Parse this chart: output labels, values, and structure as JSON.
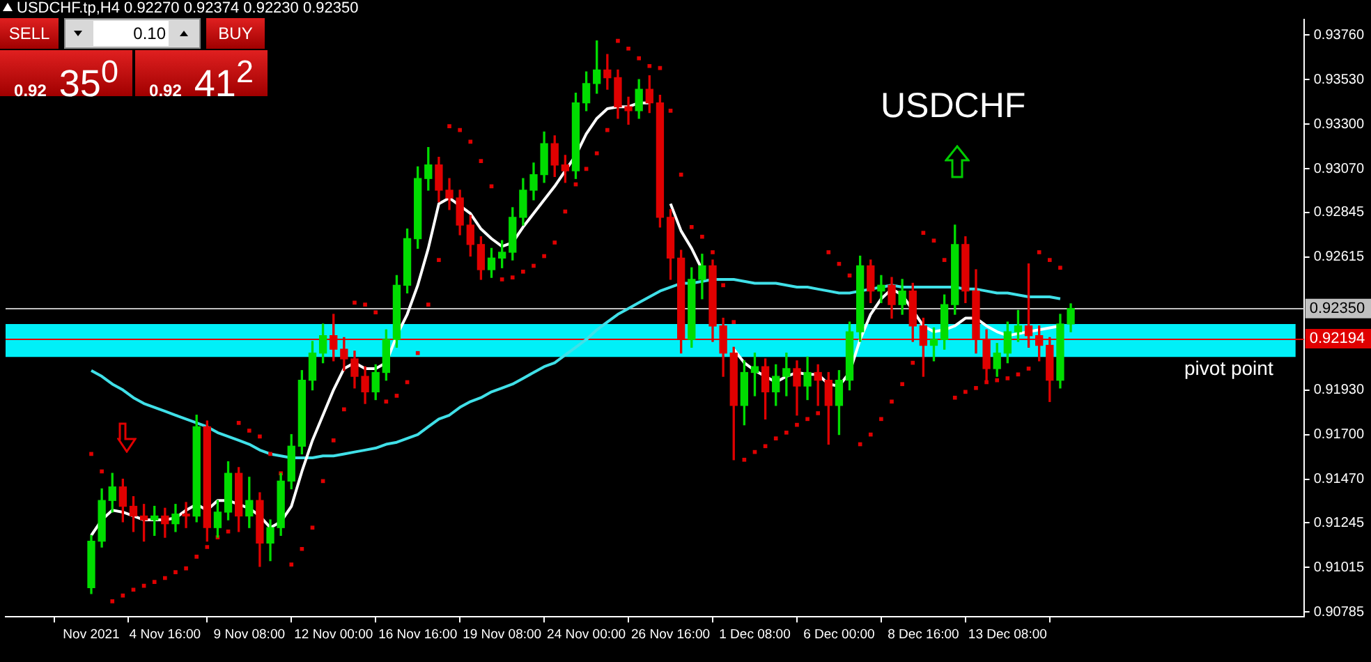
{
  "chart_data": {
    "type": "candlestick",
    "title": "USDCHF.tp,H4  0.92270 0.92374 0.92230 0.92350",
    "categories": [
      "Nov 2021",
      null,
      null,
      null,
      null,
      null,
      null,
      "4 Nov 16:00",
      null,
      null,
      null,
      null,
      null,
      null,
      null,
      "9 Nov 08:00",
      null,
      null,
      null,
      null,
      null,
      null,
      null,
      "12 Nov 00:00",
      null,
      null,
      null,
      null,
      null,
      null,
      null,
      "16 Nov 16:00",
      null,
      null,
      null,
      null,
      null,
      null,
      null,
      "19 Nov 08:00",
      null,
      null,
      null,
      null,
      null,
      null,
      null,
      "24 Nov 00:00",
      null,
      null,
      null,
      null,
      null,
      null,
      null,
      "26 Nov 16:00",
      null,
      null,
      null,
      null,
      null,
      null,
      null,
      "1 Dec 08:00",
      null,
      null,
      null,
      null,
      null,
      null,
      null,
      "6 Dec 00:00",
      null,
      null,
      null,
      null,
      null,
      null,
      null,
      "8 Dec 16:00",
      null,
      null,
      null,
      null,
      null,
      null,
      null,
      "13 Dec 08:00",
      null,
      null,
      null,
      null,
      null,
      null
    ],
    "ohlc": [
      [
        0.9091,
        0.9118,
        0.9088,
        0.9115
      ],
      [
        0.9115,
        0.9142,
        0.9112,
        0.9136
      ],
      [
        0.9136,
        0.915,
        0.913,
        0.9143
      ],
      [
        0.9143,
        0.9147,
        0.9125,
        0.9133
      ],
      [
        0.9133,
        0.9138,
        0.912,
        0.9128
      ],
      [
        0.9128,
        0.9134,
        0.9115,
        0.9126
      ],
      [
        0.9126,
        0.9133,
        0.9118,
        0.9128
      ],
      [
        0.9128,
        0.9132,
        0.9117,
        0.9124
      ],
      [
        0.9124,
        0.9134,
        0.912,
        0.9129
      ],
      [
        0.9129,
        0.9135,
        0.9122,
        0.9128
      ],
      [
        0.9128,
        0.918,
        0.9125,
        0.9174
      ],
      [
        0.9174,
        0.9177,
        0.9115,
        0.9122
      ],
      [
        0.9122,
        0.9136,
        0.9117,
        0.913
      ],
      [
        0.913,
        0.9156,
        0.9126,
        0.915
      ],
      [
        0.915,
        0.9153,
        0.912,
        0.9128
      ],
      [
        0.9128,
        0.9148,
        0.9122,
        0.9136
      ],
      [
        0.9136,
        0.914,
        0.9102,
        0.9114
      ],
      [
        0.9114,
        0.9126,
        0.9105,
        0.9122
      ],
      [
        0.9122,
        0.915,
        0.9118,
        0.9146
      ],
      [
        0.9146,
        0.917,
        0.9142,
        0.9164
      ],
      [
        0.9164,
        0.9203,
        0.916,
        0.9198
      ],
      [
        0.9198,
        0.9218,
        0.9193,
        0.9212
      ],
      [
        0.9212,
        0.9227,
        0.9207,
        0.9221
      ],
      [
        0.9221,
        0.9232,
        0.9208,
        0.9214
      ],
      [
        0.9214,
        0.922,
        0.9203,
        0.9209
      ],
      [
        0.9209,
        0.9213,
        0.9194,
        0.92
      ],
      [
        0.92,
        0.9205,
        0.9186,
        0.9192
      ],
      [
        0.9192,
        0.9206,
        0.9188,
        0.9202
      ],
      [
        0.9202,
        0.9224,
        0.9198,
        0.9219
      ],
      [
        0.9219,
        0.9252,
        0.9215,
        0.9247
      ],
      [
        0.9247,
        0.9276,
        0.9243,
        0.9271
      ],
      [
        0.9271,
        0.9308,
        0.9266,
        0.9302
      ],
      [
        0.9302,
        0.9318,
        0.9296,
        0.9309
      ],
      [
        0.9309,
        0.9313,
        0.929,
        0.9296
      ],
      [
        0.9296,
        0.9302,
        0.9286,
        0.9292
      ],
      [
        0.9292,
        0.9296,
        0.9273,
        0.9278
      ],
      [
        0.9278,
        0.9283,
        0.9262,
        0.9268
      ],
      [
        0.9268,
        0.9272,
        0.925,
        0.9255
      ],
      [
        0.9255,
        0.9266,
        0.9251,
        0.9261
      ],
      [
        0.9261,
        0.927,
        0.9256,
        0.9264
      ],
      [
        0.9264,
        0.9287,
        0.926,
        0.9282
      ],
      [
        0.9282,
        0.9302,
        0.9278,
        0.9296
      ],
      [
        0.9296,
        0.931,
        0.9291,
        0.9304
      ],
      [
        0.9304,
        0.9326,
        0.93,
        0.932
      ],
      [
        0.932,
        0.9324,
        0.9303,
        0.9309
      ],
      [
        0.9309,
        0.9314,
        0.93,
        0.9306
      ],
      [
        0.9306,
        0.9346,
        0.9302,
        0.9341
      ],
      [
        0.9341,
        0.9357,
        0.9337,
        0.9351
      ],
      [
        0.9351,
        0.9373,
        0.9346,
        0.9358
      ],
      [
        0.9358,
        0.9366,
        0.9348,
        0.9354
      ],
      [
        0.9354,
        0.9358,
        0.9333,
        0.9339
      ],
      [
        0.9339,
        0.9344,
        0.933,
        0.9337
      ],
      [
        0.9337,
        0.9353,
        0.9333,
        0.9348
      ],
      [
        0.9348,
        0.9355,
        0.9336,
        0.9341
      ],
      [
        0.9341,
        0.9345,
        0.9277,
        0.9282
      ],
      [
        0.9282,
        0.9286,
        0.925,
        0.9261
      ],
      [
        0.9261,
        0.9265,
        0.9212,
        0.9219
      ],
      [
        0.9219,
        0.9256,
        0.9215,
        0.925
      ],
      [
        0.925,
        0.9263,
        0.924,
        0.9257
      ],
      [
        0.9257,
        0.926,
        0.9218,
        0.9226
      ],
      [
        0.9226,
        0.923,
        0.92,
        0.9212
      ],
      [
        0.9212,
        0.9215,
        0.9157,
        0.9185
      ],
      [
        0.9185,
        0.9208,
        0.9175,
        0.9202
      ],
      [
        0.9202,
        0.9212,
        0.919,
        0.9205
      ],
      [
        0.9205,
        0.9209,
        0.9178,
        0.9192
      ],
      [
        0.9192,
        0.9206,
        0.9185,
        0.92
      ],
      [
        0.92,
        0.9212,
        0.919,
        0.9204
      ],
      [
        0.9204,
        0.9208,
        0.918,
        0.9195
      ],
      [
        0.9195,
        0.921,
        0.9188,
        0.9202
      ],
      [
        0.9202,
        0.9206,
        0.9185,
        0.9198
      ],
      [
        0.9198,
        0.9202,
        0.9165,
        0.9185
      ],
      [
        0.9185,
        0.9203,
        0.917,
        0.9198
      ],
      [
        0.9198,
        0.9228,
        0.9193,
        0.9223
      ],
      [
        0.9223,
        0.9262,
        0.9218,
        0.9257
      ],
      [
        0.9257,
        0.926,
        0.9238,
        0.9244
      ],
      [
        0.9244,
        0.9252,
        0.9238,
        0.9247
      ],
      [
        0.9247,
        0.9251,
        0.923,
        0.9237
      ],
      [
        0.9237,
        0.925,
        0.9232,
        0.9244
      ],
      [
        0.9244,
        0.9248,
        0.9218,
        0.9226
      ],
      [
        0.9226,
        0.923,
        0.92,
        0.9216
      ],
      [
        0.9216,
        0.9225,
        0.9208,
        0.9219
      ],
      [
        0.9219,
        0.9242,
        0.9214,
        0.9237
      ],
      [
        0.9237,
        0.9278,
        0.9232,
        0.9268
      ],
      [
        0.9268,
        0.9272,
        0.9238,
        0.9244
      ],
      [
        0.9244,
        0.9255,
        0.9212,
        0.9219
      ],
      [
        0.9219,
        0.9224,
        0.9198,
        0.9204
      ],
      [
        0.9204,
        0.9217,
        0.92,
        0.9212
      ],
      [
        0.9212,
        0.9228,
        0.9207,
        0.9223
      ],
      [
        0.9223,
        0.9234,
        0.9218,
        0.9226
      ],
      [
        0.9226,
        0.9258,
        0.9215,
        0.9221
      ],
      [
        0.9221,
        0.9226,
        0.9208,
        0.9216
      ],
      [
        0.9216,
        0.922,
        0.9187,
        0.9198
      ],
      [
        0.9198,
        0.9232,
        0.9194,
        0.9227
      ],
      [
        0.9227,
        0.92374,
        0.9223,
        0.9235
      ]
    ],
    "colors": [
      "#00dd00",
      "#00dd00",
      "#00dd00",
      "#e00000",
      "#e00000",
      "#e00000",
      "#00dd00",
      "#e00000",
      "#00dd00",
      "#e00000",
      "#00dd00",
      "#e00000",
      "#00dd00",
      "#00dd00",
      "#e00000",
      "#00dd00",
      "#e00000",
      "#00dd00",
      "#00dd00",
      "#00dd00",
      "#00dd00",
      "#00dd00",
      "#00dd00",
      "#e00000",
      "#e00000",
      "#e00000",
      "#e00000",
      "#00dd00",
      "#00dd00",
      "#00dd00",
      "#00dd00",
      "#00dd00",
      "#00dd00",
      "#e00000",
      "#e00000",
      "#e00000",
      "#e00000",
      "#e00000",
      "#00dd00",
      "#00dd00",
      "#00dd00",
      "#00dd00",
      "#00dd00",
      "#00dd00",
      "#e00000",
      "#e00000",
      "#00dd00",
      "#00dd00",
      "#00dd00",
      "#e00000",
      "#e00000",
      "#e00000",
      "#00dd00",
      "#e00000",
      "#e00000",
      "#e00000",
      "#e00000",
      "#00dd00",
      "#00dd00",
      "#e00000",
      "#e00000",
      "#e00000",
      "#00dd00",
      "#00dd00",
      "#e00000",
      "#00dd00",
      "#00dd00",
      "#e00000",
      "#00dd00",
      "#e00000",
      "#e00000",
      "#00dd00",
      "#00dd00",
      "#00dd00",
      "#e00000",
      "#00dd00",
      "#e00000",
      "#00dd00",
      "#e00000",
      "#e00000",
      "#00dd00",
      "#00dd00",
      "#00dd00",
      "#e00000",
      "#e00000",
      "#e00000",
      "#00dd00",
      "#00dd00",
      "#00dd00",
      "#e00000",
      "#e00000",
      "#e00000",
      "#00dd00",
      "#00dd00"
    ],
    "series": [
      {
        "type": "line",
        "color": "#ffffff",
        "values": [
          0.9118,
          0.9126,
          0.9131,
          0.913,
          0.9128,
          0.9126,
          0.9126,
          0.9126,
          0.9127,
          0.9131,
          0.9134,
          0.9131,
          0.9136,
          0.9136,
          0.9134,
          0.9132,
          0.9128,
          0.9122,
          0.9125,
          0.9133,
          0.9151,
          0.9167,
          0.918,
          0.9193,
          0.9204,
          0.9207,
          0.9204,
          0.9204,
          0.9207,
          0.9221,
          0.9232,
          0.9247,
          0.9266,
          0.9289,
          0.9292,
          0.9288,
          0.9284,
          0.9276,
          0.9271,
          0.9267,
          0.9269,
          0.9277,
          0.9284,
          0.9291,
          0.9298,
          0.9306,
          0.9314,
          0.9325,
          0.9333,
          0.9338,
          0.9339,
          0.9339,
          0.9341,
          0.9341,
          null,
          0.9289,
          0.9275,
          0.9266,
          0.9255,
          null,
          null,
          0.9214,
          0.9207,
          0.9203,
          0.92,
          0.9197,
          0.92,
          0.9202,
          0.9201,
          0.9201,
          0.9196,
          0.9195,
          0.9202,
          0.9219,
          0.9232,
          0.924,
          0.9245,
          0.9242,
          0.9234,
          0.9226,
          0.9223,
          0.9224,
          0.9226,
          0.923,
          0.923,
          0.9226,
          0.9223,
          0.9221,
          0.9222,
          0.9223,
          0.9224,
          0.9225,
          0.9226,
          null
        ]
      },
      {
        "type": "line",
        "color": "#40e0e8",
        "values": [
          0.9203,
          0.92,
          0.9196,
          0.9193,
          0.9189,
          0.9186,
          0.9184,
          0.9182,
          0.918,
          0.9178,
          0.9176,
          0.9174,
          0.9171,
          0.9169,
          0.9167,
          0.9165,
          0.9162,
          0.916,
          0.9159,
          0.9158,
          0.9158,
          0.9158,
          0.9159,
          0.9159,
          0.916,
          0.9161,
          0.9162,
          0.9163,
          0.9165,
          0.9166,
          0.9168,
          0.917,
          0.9174,
          0.9178,
          0.918,
          0.9184,
          0.9187,
          0.9189,
          0.9192,
          0.9194,
          0.9196,
          0.9199,
          0.9202,
          0.9205,
          0.9207,
          0.9211,
          0.9215,
          0.9219,
          0.9224,
          0.9228,
          0.9232,
          0.9235,
          0.9238,
          0.9241,
          0.9244,
          0.9246,
          0.9248,
          0.9248,
          0.9249,
          0.925,
          0.925,
          0.925,
          0.9249,
          0.9248,
          0.9248,
          0.9248,
          0.9247,
          0.9246,
          0.9246,
          0.9245,
          0.9244,
          0.9243,
          0.9243,
          0.9244,
          0.9245,
          0.9246,
          0.9247,
          0.9246,
          0.9246,
          0.9246,
          0.9246,
          0.9246,
          0.9246,
          0.9245,
          0.9245,
          0.9244,
          0.9243,
          0.9243,
          0.9242,
          0.9241,
          0.9241,
          0.9241,
          0.924,
          null
        ]
      },
      {
        "type": "scatter",
        "color": "#e00000",
        "marker": "square",
        "values": [
          0.916,
          0.9151,
          0.9084,
          0.9087,
          0.909,
          0.9092,
          0.9094,
          0.9096,
          0.9099,
          0.9101,
          0.9107,
          0.9112,
          0.9117,
          0.912,
          0.9176,
          0.9172,
          0.9169,
          0.916,
          0.915,
          0.9103,
          0.9111,
          0.9122,
          0.9146,
          0.9167,
          0.9183,
          0.9238,
          0.9237,
          0.9233,
          0.9187,
          0.919,
          0.9197,
          0.9212,
          0.9237,
          0.926,
          0.9329,
          0.9327,
          0.9321,
          0.9311,
          0.9298,
          0.925,
          0.9251,
          0.9254,
          0.9257,
          0.9262,
          0.9269,
          0.9285,
          0.9299,
          0.9307,
          0.9315,
          0.9327,
          0.9373,
          0.9369,
          0.9364,
          0.936,
          0.9359,
          0.9337,
          0.9304,
          0.9277,
          0.9272,
          0.9264,
          0.9247,
          0.9228,
          0.9157,
          0.9161,
          0.9164,
          0.9168,
          0.9171,
          0.9175,
          0.9178,
          0.9181,
          0.9264,
          0.9258,
          0.9252,
          0.9165,
          0.917,
          0.9178,
          0.9187,
          0.9196,
          0.9207,
          0.9274,
          0.927,
          0.926,
          0.9189,
          0.9192,
          0.9194,
          0.9197,
          0.9198,
          0.9199,
          0.9201,
          0.9204,
          0.9264,
          0.926,
          0.9256,
          null
        ]
      }
    ],
    "ylim": [
      0.9076,
      0.9384
    ],
    "yticks": [
      {
        "value": 0.9376,
        "label": "0.93760"
      },
      {
        "value": 0.9353,
        "label": "0.93530"
      },
      {
        "value": 0.933,
        "label": "0.93300"
      },
      {
        "value": 0.9307,
        "label": "0.93070"
      },
      {
        "value": 0.92845,
        "label": "0.92845"
      },
      {
        "value": 0.92615,
        "label": "0.92615"
      },
      {
        "value": 0.9193,
        "label": "0.91930"
      },
      {
        "value": 0.917,
        "label": "0.91700"
      },
      {
        "value": 0.9147,
        "label": "0.91470"
      },
      {
        "value": 0.91245,
        "label": "0.91245"
      },
      {
        "value": 0.91015,
        "label": "0.91015"
      },
      {
        "value": 0.90785,
        "label": "0.90785"
      }
    ],
    "ref_lines": [
      {
        "axis": "y",
        "value": 0.9235,
        "label": "0.92350",
        "color": "#c0c0c0"
      },
      {
        "axis": "y",
        "value": 0.92194,
        "label": "0.92194",
        "color": "#e00000"
      }
    ],
    "bands": [
      {
        "axis": "y",
        "from": 0.921,
        "to": 0.9227,
        "label": "pivot point",
        "color": "#00f0f8"
      }
    ],
    "annotations": [
      "SELL",
      "0.10",
      "BUY",
      "0.92 35$^{0}$",
      "0.92 41$^{2}$",
      "USDCHF"
    ]
  }
}
